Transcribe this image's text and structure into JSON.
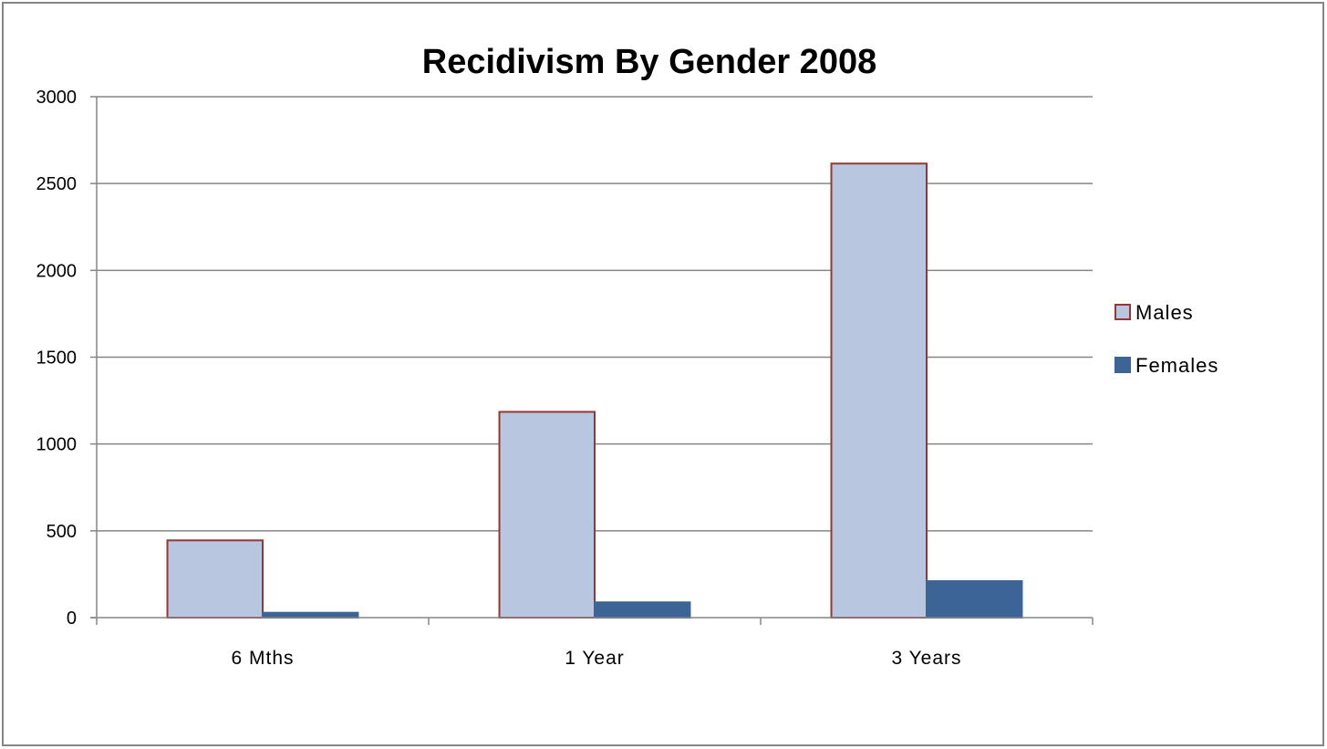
{
  "chart_data": {
    "type": "bar",
    "title": "Recidivism By Gender 2008",
    "xlabel": "",
    "ylabel": "",
    "categories": [
      "6 Mths",
      "1 Year",
      "3 Years"
    ],
    "series": [
      {
        "name": "Males",
        "values": [
          445,
          1185,
          2615
        ],
        "fill": "#b8c6e0",
        "stroke": "#953735"
      },
      {
        "name": "Females",
        "values": [
          28,
          88,
          210
        ],
        "fill": "#3c6595",
        "stroke": "#3c6595"
      }
    ],
    "ylim": [
      0,
      3000
    ],
    "yticks": [
      0,
      500,
      1000,
      1500,
      2000,
      2500,
      3000
    ],
    "grid": true,
    "legend": "right"
  }
}
